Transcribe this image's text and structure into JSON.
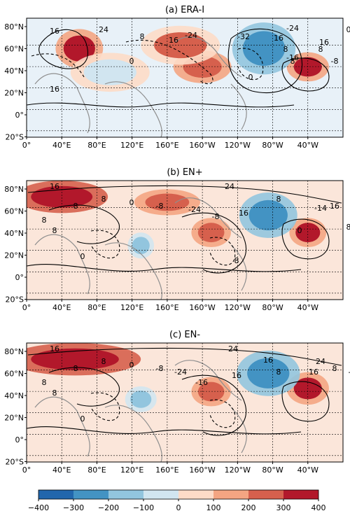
{
  "panels": [
    {
      "title": "(a) ERA-I",
      "lat_ticks": [
        "80°N",
        "60°N",
        "40°N",
        "20°N",
        "0°",
        "20°S"
      ],
      "lon_ticks": [
        "0°",
        "40°E",
        "80°E",
        "120°E",
        "160°E",
        "160°W",
        "120°W",
        "80°W",
        "40°W"
      ],
      "contour_labels": [
        "16",
        "24",
        "8",
        "16",
        "-24",
        "-32",
        "16",
        "8",
        "-16",
        "0",
        "0",
        "16",
        "-24",
        "8",
        "16",
        "0",
        "8",
        "-8"
      ],
      "fills": [
        {
          "level": 300,
          "lon": 60,
          "lat": 62,
          "rx": 18,
          "ry": 12
        },
        {
          "level": 250,
          "lon": 200,
          "lat": 45,
          "rx": 22,
          "ry": 10
        },
        {
          "level": 200,
          "lon": 175,
          "lat": 65,
          "rx": 30,
          "ry": 12
        },
        {
          "level": 300,
          "lon": 320,
          "lat": 45,
          "rx": 16,
          "ry": 9
        },
        {
          "level": -300,
          "lon": 270,
          "lat": 62,
          "rx": 24,
          "ry": 16
        },
        {
          "level": -100,
          "lon": 95,
          "lat": 40,
          "rx": 30,
          "ry": 12
        }
      ]
    },
    {
      "title": "(b) EN+",
      "lat_ticks": [
        "80°N",
        "60°N",
        "40°N",
        "20°N",
        "0°",
        "20°S"
      ],
      "lon_ticks": [
        "0°",
        "40°E",
        "80°E",
        "120°E",
        "160°E",
        "160°W",
        "120°W",
        "80°W",
        "40°W"
      ],
      "contour_labels": [
        "16",
        "24",
        "8",
        "8",
        "0",
        "-8",
        "8",
        "8",
        "0",
        "8",
        "-24",
        "-8",
        "16",
        "8",
        "0",
        "-14",
        "16",
        "8"
      ],
      "fills": [
        {
          "level": 350,
          "lon": 40,
          "lat": 75,
          "rx": 35,
          "ry": 10
        },
        {
          "level": 250,
          "lon": 160,
          "lat": 70,
          "rx": 25,
          "ry": 8
        },
        {
          "level": 250,
          "lon": 210,
          "lat": 42,
          "rx": 15,
          "ry": 9
        },
        {
          "level": 300,
          "lon": 320,
          "lat": 42,
          "rx": 14,
          "ry": 9
        },
        {
          "level": -300,
          "lon": 275,
          "lat": 58,
          "rx": 22,
          "ry": 14
        },
        {
          "level": -200,
          "lon": 130,
          "lat": 30,
          "rx": 10,
          "ry": 8
        }
      ]
    },
    {
      "title": "(c) EN-",
      "lat_ticks": [
        "80°N",
        "60°N",
        "40°N",
        "20°N",
        "0°",
        "20°S"
      ],
      "lon_ticks": [
        "0°",
        "40°E",
        "80°E",
        "120°E",
        "160°E",
        "160°W",
        "120°W",
        "80°W",
        "40°W"
      ],
      "contour_labels": [
        "16",
        "24",
        "8",
        "8",
        "0",
        "-8",
        "8",
        "8",
        "0",
        "-24",
        "-16",
        "16",
        "16",
        "8",
        "16",
        "24",
        "8",
        "-8"
      ],
      "fills": [
        {
          "level": 400,
          "lon": 55,
          "lat": 75,
          "rx": 50,
          "ry": 10
        },
        {
          "level": 250,
          "lon": 210,
          "lat": 45,
          "rx": 15,
          "ry": 9
        },
        {
          "level": 300,
          "lon": 320,
          "lat": 48,
          "rx": 16,
          "ry": 10
        },
        {
          "level": -300,
          "lon": 275,
          "lat": 62,
          "rx": 24,
          "ry": 14
        },
        {
          "level": -200,
          "lon": 130,
          "lat": 38,
          "rx": 12,
          "ry": 8
        }
      ]
    }
  ],
  "colorbar": {
    "ticks": [
      "−400",
      "−300",
      "−200",
      "−100",
      "0",
      "100",
      "200",
      "300",
      "400"
    ],
    "colors": [
      "#2166ac",
      "#4393c3",
      "#92c5de",
      "#d1e5f0",
      "#fddbc7",
      "#f4a582",
      "#d6604d",
      "#b2182b"
    ]
  }
}
